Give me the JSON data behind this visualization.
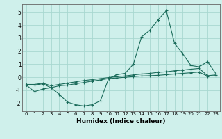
{
  "xlabel": "Humidex (Indice chaleur)",
  "background_color": "#cff0eb",
  "grid_color": "#a8d8d0",
  "line_color": "#1a6b5a",
  "xlim": [
    -0.5,
    23.5
  ],
  "ylim": [
    -2.6,
    5.6
  ],
  "xticks": [
    0,
    1,
    2,
    3,
    4,
    5,
    6,
    7,
    8,
    9,
    10,
    11,
    12,
    13,
    14,
    15,
    16,
    17,
    18,
    19,
    20,
    21,
    22,
    23
  ],
  "yticks": [
    -2,
    -1,
    0,
    1,
    2,
    3,
    4,
    5
  ],
  "series1_x": [
    0,
    1,
    2,
    3,
    4,
    5,
    6,
    7,
    8,
    9,
    10,
    11,
    12,
    13,
    14,
    15,
    16,
    17,
    18,
    19,
    20,
    21,
    22,
    23
  ],
  "series1_y": [
    -0.6,
    -1.1,
    -0.9,
    -0.8,
    -1.3,
    -1.9,
    -2.1,
    -2.2,
    -2.1,
    -1.8,
    -0.1,
    0.2,
    0.3,
    1.0,
    3.1,
    3.6,
    4.4,
    5.1,
    2.6,
    1.8,
    0.9,
    0.8,
    1.2,
    0.3
  ],
  "series2_x": [
    0,
    1,
    2,
    3,
    4,
    5,
    6,
    7,
    8,
    9,
    10,
    11,
    12,
    13,
    14,
    15,
    16,
    17,
    18,
    19,
    20,
    21,
    22,
    23
  ],
  "series2_y": [
    -0.55,
    -0.6,
    -0.5,
    -0.8,
    -0.65,
    -0.6,
    -0.5,
    -0.4,
    -0.3,
    -0.2,
    -0.1,
    -0.05,
    0.0,
    0.05,
    0.1,
    0.12,
    0.15,
    0.2,
    0.25,
    0.3,
    0.35,
    0.4,
    0.08,
    0.12
  ],
  "series3_x": [
    0,
    1,
    2,
    3,
    4,
    5,
    6,
    7,
    8,
    9,
    10,
    11,
    12,
    13,
    14,
    15,
    16,
    17,
    18,
    19,
    20,
    21,
    22,
    23
  ],
  "series3_y": [
    -0.55,
    -0.55,
    -0.45,
    -0.65,
    -0.55,
    -0.45,
    -0.35,
    -0.25,
    -0.18,
    -0.1,
    -0.02,
    0.05,
    0.1,
    0.18,
    0.25,
    0.3,
    0.38,
    0.42,
    0.5,
    0.55,
    0.62,
    0.68,
    0.12,
    0.18
  ]
}
